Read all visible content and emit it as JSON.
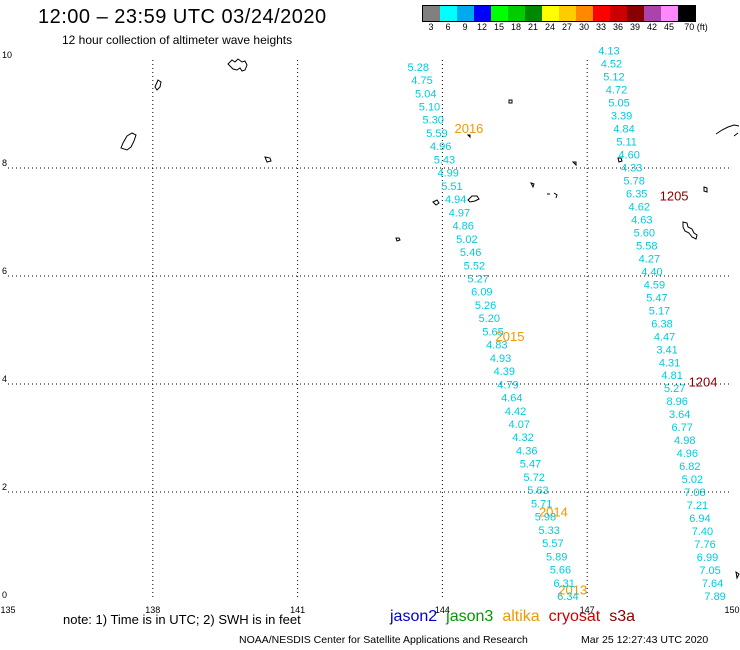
{
  "header": {
    "title": "12:00 – 23:59 UTC 03/24/2020",
    "subtitle": "12 hour collection of altimeter wave heights"
  },
  "colorbar": {
    "colors": [
      "#808080",
      "#00ffff",
      "#00aaee",
      "#0000ff",
      "#00ff00",
      "#00cc00",
      "#008800",
      "#ffff00",
      "#ffcc00",
      "#ff8800",
      "#ff0000",
      "#cc0000",
      "#880000",
      "#aa44aa",
      "#ff88ff",
      "#000000"
    ],
    "labels": [
      "3",
      "6",
      "9",
      "12",
      "15",
      "18",
      "21",
      "24",
      "27",
      "30",
      "33",
      "36",
      "39",
      "42",
      "45",
      "70 (ft)"
    ]
  },
  "map": {
    "lon_labels": [
      "135",
      "138",
      "141",
      "144",
      "147",
      "150"
    ],
    "lat_labels": [
      "0",
      "2",
      "4",
      "6",
      "8",
      "10"
    ],
    "lon_values": [
      135,
      138,
      141,
      144,
      147,
      150
    ],
    "lat_values": [
      0,
      2,
      4,
      6,
      8,
      10
    ],
    "extent": {
      "lon_min": 135,
      "lon_max": 150,
      "lat_min": 0,
      "lat_max": 10
    },
    "pass_labels": [
      {
        "text": "2016",
        "lon": 144.55,
        "lat": 8.65,
        "color": "#ee9900"
      },
      {
        "text": "2015",
        "lon": 145.4,
        "lat": 4.8,
        "color": "#ee9900"
      },
      {
        "text": "2014",
        "lon": 146.3,
        "lat": 1.55,
        "color": "#ee9900"
      },
      {
        "text": "2013",
        "lon": 146.7,
        "lat": 0.1,
        "color": "#ee9900"
      },
      {
        "text": "1205",
        "lon": 148.8,
        "lat": 7.4,
        "color": "#880000"
      },
      {
        "text": "1204",
        "lon": 149.4,
        "lat": 3.95,
        "color": "#880000"
      }
    ],
    "tracks": [
      {
        "name": "track-west",
        "start": {
          "lon": 143.5,
          "lat": 9.8
        },
        "end": {
          "lon": 146.6,
          "lat": 0.0
        },
        "values": [
          "5.28",
          "4.75",
          "5.04",
          "5.10",
          "5.30",
          "5.59",
          "4.96",
          "5.43",
          "4.99",
          "5.51",
          "4.94",
          "4.97",
          "4.86",
          "5.02",
          "5.46",
          "5.52",
          "5.27",
          "6.09",
          "5.26",
          "5.20",
          "5.65",
          "4.83",
          "4.93",
          "4.39",
          "4.79",
          "4.64",
          "4.42",
          "4.07",
          "4.32",
          "4.36",
          "5.47",
          "5.72",
          "5.63",
          "5.71",
          "5.98",
          "5.33",
          "5.57",
          "5.89",
          "5.66",
          "6.31",
          "6.34"
        ]
      },
      {
        "name": "track-east",
        "start": {
          "lon": 147.45,
          "lat": 10.1
        },
        "end": {
          "lon": 149.65,
          "lat": 0.0
        },
        "values": [
          "4.13",
          "4.52",
          "5.12",
          "4.72",
          "5.05",
          "3.39",
          "4.84",
          "5.11",
          "4.60",
          "4.33",
          "5.78",
          "6.35",
          "4.62",
          "4.63",
          "5.60",
          "5.58",
          "4.27",
          "4.40",
          "4.59",
          "5.47",
          "5.17",
          "6.38",
          "4.47",
          "3.41",
          "4.31",
          "4.81",
          "5.27",
          "8.96",
          "3.64",
          "6.77",
          "4.98",
          "4.96",
          "6.82",
          "5.02",
          "7.08",
          "7.21",
          "6.94",
          "7.40",
          "7.76",
          "6.99",
          "7.05",
          "7.64",
          "7.89"
        ]
      }
    ]
  },
  "footer": {
    "note": "note:  1) Time is in UTC;  2) SWH is in feet",
    "satellites": [
      {
        "name": "jason2",
        "color": "#0000cc"
      },
      {
        "name": "jason3",
        "color": "#009900"
      },
      {
        "name": "altika",
        "color": "#ee9900"
      },
      {
        "name": "cryosat",
        "color": "#cc0000"
      },
      {
        "name": "s3a",
        "color": "#880000"
      }
    ],
    "credit": "NOAA/NESDIS Center for Satellite Applications and Research",
    "timestamp": "Mar 25 12:27:43 UTC 2020"
  }
}
